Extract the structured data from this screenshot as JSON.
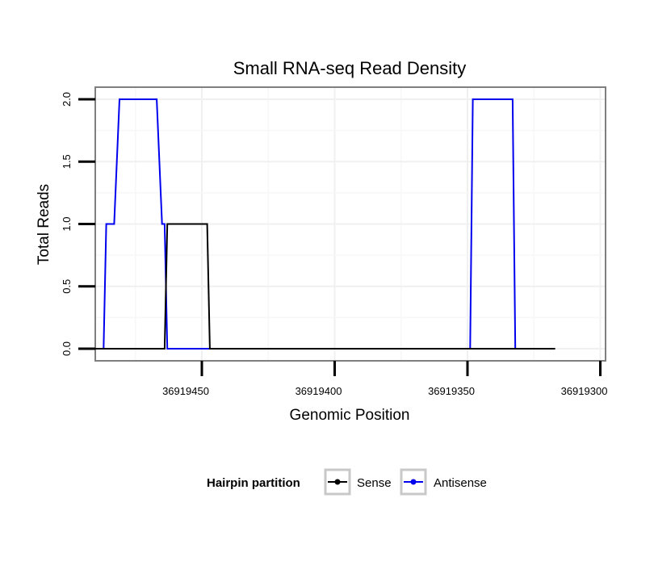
{
  "chart_data": {
    "type": "line",
    "title": "Small RNA-seq Read Density",
    "xlabel": "Genomic Position",
    "ylabel": "Total Reads",
    "x_reversed": true,
    "xlim": [
      36919500,
      36919300
    ],
    "ylim": [
      0,
      2
    ],
    "x_ticks": [
      36919450,
      36919400,
      36919350,
      36919300
    ],
    "x_tick_labels": [
      "36919450",
      "36919400",
      "36919350",
      "36919300"
    ],
    "y_ticks": [
      0,
      0.5,
      1,
      1.5,
      2
    ],
    "y_tick_labels": [
      "0.0",
      "0.5",
      "1.0",
      "1.5",
      "2.0"
    ],
    "grid": true,
    "legend": {
      "title": "Hairpin partition",
      "position": "bottom",
      "entries": [
        "Sense",
        "Antisense"
      ]
    },
    "series": [
      {
        "name": "Sense",
        "color": "#000000",
        "points": [
          [
            36919491,
            0
          ],
          [
            36919464,
            0
          ],
          [
            36919463,
            1
          ],
          [
            36919448,
            1
          ],
          [
            36919447,
            0
          ],
          [
            36919317,
            0
          ]
        ]
      },
      {
        "name": "Antisense",
        "color": "#0000ee",
        "points": [
          [
            36919487,
            0
          ],
          [
            36919486,
            1
          ],
          [
            36919483,
            1
          ],
          [
            36919481,
            2
          ],
          [
            36919467,
            2
          ],
          [
            36919465,
            1
          ],
          [
            36919464,
            1
          ],
          [
            36919463,
            0
          ],
          [
            36919349,
            0
          ],
          [
            36919348,
            2
          ],
          [
            36919333,
            2
          ],
          [
            36919332,
            0
          ]
        ]
      }
    ]
  }
}
